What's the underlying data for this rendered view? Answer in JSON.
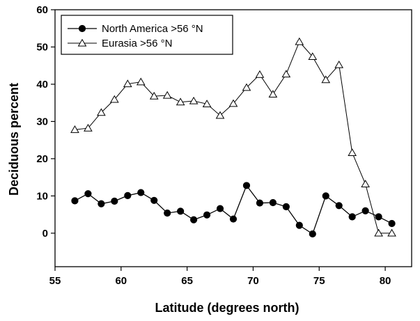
{
  "chart_data": {
    "type": "line",
    "title": "",
    "xlabel": "Latitude (degrees north)",
    "ylabel": "Deciduous percent",
    "xlim": [
      55,
      82
    ],
    "ylim": [
      -9,
      60
    ],
    "x_ticks": [
      55,
      60,
      65,
      70,
      75,
      80
    ],
    "y_ticks": [
      0,
      10,
      20,
      30,
      40,
      50,
      60
    ],
    "grid": false,
    "legend_position": "top-left",
    "x": [
      56.5,
      57.5,
      58.5,
      59.5,
      60.5,
      61.5,
      62.5,
      63.5,
      64.5,
      65.5,
      66.5,
      67.5,
      68.5,
      69.5,
      70.5,
      71.5,
      72.5,
      73.5,
      74.5,
      75.5,
      76.5,
      77.5,
      78.5,
      79.5,
      80.5
    ],
    "series": [
      {
        "name": "North America >56 °N",
        "marker": "filled-circle",
        "color": "#000000",
        "values": [
          8.7,
          10.6,
          7.9,
          8.6,
          10.1,
          10.9,
          8.8,
          5.4,
          5.9,
          3.6,
          4.9,
          6.6,
          3.8,
          12.8,
          8.1,
          8.2,
          7.1,
          2.1,
          -0.2,
          10.0,
          7.4,
          4.4,
          6.0,
          4.4,
          2.6
        ]
      },
      {
        "name": "Eurasia >56 °N",
        "marker": "open-triangle",
        "color": "#000000",
        "values": [
          27.8,
          28.2,
          32.4,
          35.9,
          40.1,
          40.6,
          36.8,
          37.0,
          35.2,
          35.5,
          34.7,
          31.6,
          34.8,
          39.1,
          42.6,
          37.3,
          42.7,
          51.4,
          47.4,
          41.2,
          45.2,
          21.6,
          13.2,
          0.0,
          0.0
        ]
      }
    ]
  }
}
